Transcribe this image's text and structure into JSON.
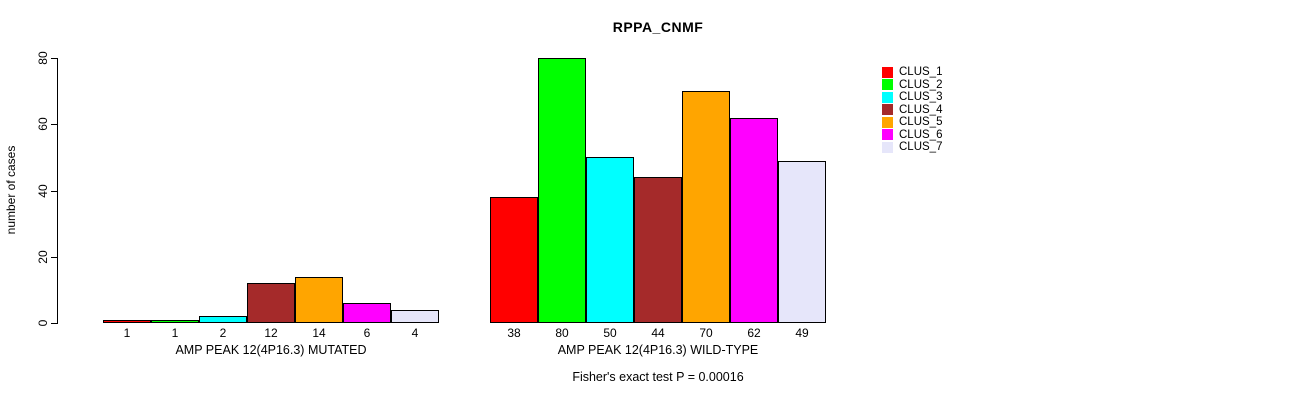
{
  "chart_data": {
    "type": "bar",
    "title": "RPPA_CNMF",
    "ylabel": "number of cases",
    "ylim": [
      0,
      80
    ],
    "yticks": [
      0,
      20,
      40,
      60,
      80
    ],
    "grid": false,
    "legend_position": "right",
    "clusters": [
      {
        "name": "CLUS_1",
        "color": "#FF0000"
      },
      {
        "name": "CLUS_2",
        "color": "#00FF00"
      },
      {
        "name": "CLUS_3",
        "color": "#00FFFF"
      },
      {
        "name": "CLUS_4",
        "color": "#A52A2A"
      },
      {
        "name": "CLUS_5",
        "color": "#FFA500"
      },
      {
        "name": "CLUS_6",
        "color": "#FF00FF"
      },
      {
        "name": "CLUS_7",
        "color": "#E6E6FA"
      }
    ],
    "groups": [
      {
        "label": "AMP PEAK 12(4P16.3) MUTATED",
        "values": [
          1,
          1,
          2,
          12,
          14,
          6,
          4
        ]
      },
      {
        "label": "AMP PEAK 12(4P16.3) WILD-TYPE",
        "values": [
          38,
          80,
          50,
          44,
          70,
          62,
          49
        ]
      }
    ],
    "annotation": "Fisher's exact test P = 0.00016"
  }
}
